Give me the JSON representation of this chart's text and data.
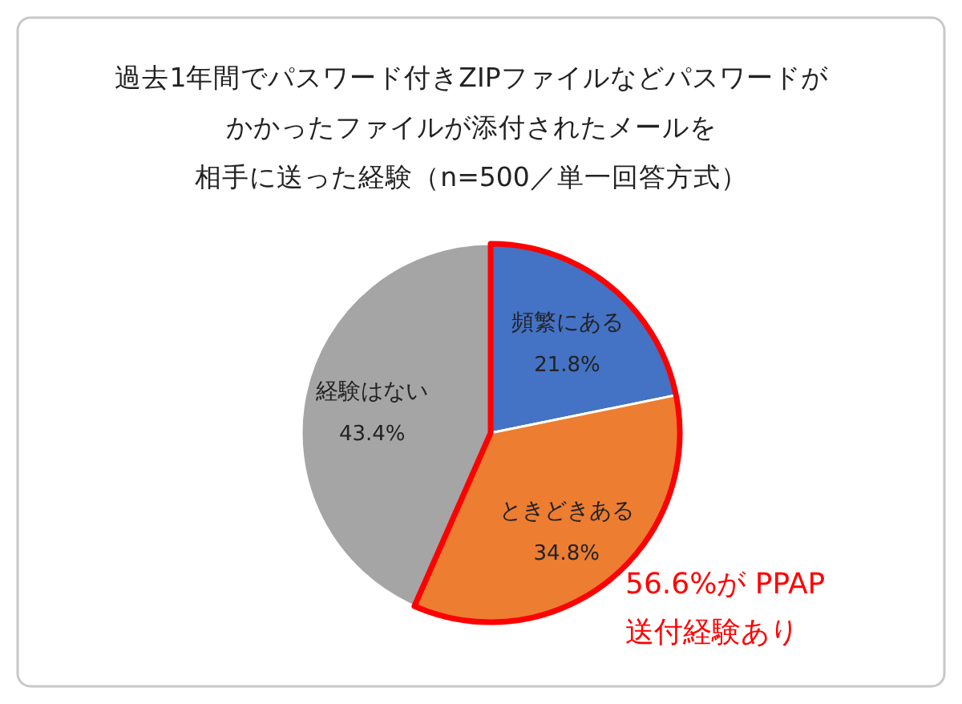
{
  "chart_data": {
    "type": "pie",
    "title": "過去1年間でパスワード付きZIPファイルなどパスワードがかかったファイルが添付されたメールを",
    "subtitle": "相手に送った経験（n=500／単一回答方式）",
    "categories": [
      "頻繁にある",
      "ときどきある",
      "経験はない"
    ],
    "values": [
      21.8,
      34.8,
      43.4
    ],
    "colors": [
      "#4472c4",
      "#ed7d31",
      "#a5a5a5"
    ],
    "value_labels": [
      "21.8%",
      "34.8%",
      "43.4%"
    ],
    "annotations": [
      "56.6%が PPAP\n送付経験あり"
    ]
  }
}
